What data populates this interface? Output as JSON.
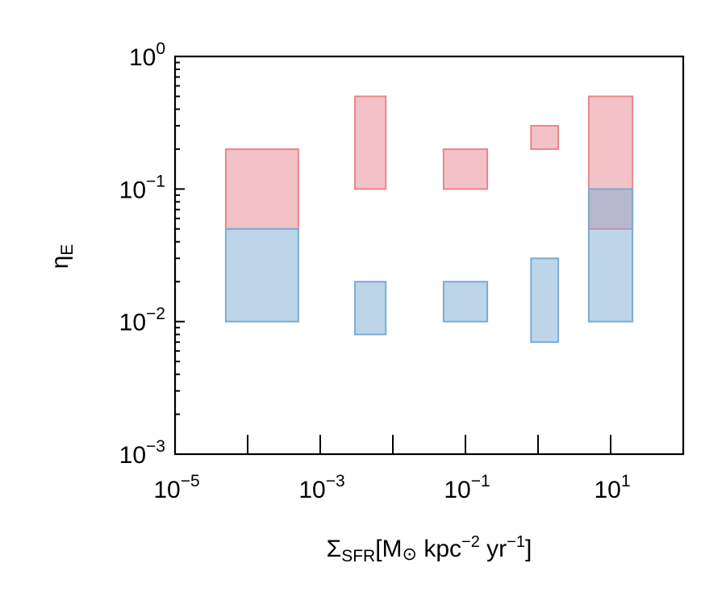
{
  "chart_data": {
    "type": "box",
    "xscale": "log",
    "yscale": "log",
    "xlim": [
      1e-05,
      100
    ],
    "ylim": [
      0.001,
      1
    ],
    "xticks": [
      {
        "base": "10",
        "exp": "−5"
      },
      {
        "base": "10",
        "exp": "−3"
      },
      {
        "base": "10",
        "exp": "−1"
      },
      {
        "base": "10",
        "exp": "1"
      }
    ],
    "yticks": [
      {
        "base": "10",
        "exp": "0"
      },
      {
        "base": "10",
        "exp": "−1"
      },
      {
        "base": "10",
        "exp": "−2"
      },
      {
        "base": "10",
        "exp": "−3"
      }
    ],
    "xlabel": {
      "main": "Σ",
      "sub": "SFR",
      "bracket_open": "[M",
      "sun": "⊙",
      "kpc": " kpc",
      "kpc_exp": "−2",
      "yr": " yr",
      "yr_exp": "−1",
      "bracket_close": "]"
    },
    "ylabel": {
      "main": "η",
      "sub": "E"
    },
    "grid": false,
    "colors": {
      "red": "#e8868d",
      "blue": "#7bacd3"
    },
    "series": [
      {
        "color_key": "red",
        "boxes": [
          {
            "x0": 5e-05,
            "x1": 0.0005,
            "y0": 0.05,
            "y1": 0.2
          },
          {
            "x0": 0.003,
            "x1": 0.008,
            "y0": 0.1,
            "y1": 0.5
          },
          {
            "x0": 0.05,
            "x1": 0.2,
            "y0": 0.1,
            "y1": 0.2
          },
          {
            "x0": 0.8,
            "x1": 1.9,
            "y0": 0.2,
            "y1": 0.3
          },
          {
            "x0": 5,
            "x1": 20,
            "y0": 0.05,
            "y1": 0.5
          }
        ]
      },
      {
        "color_key": "blue",
        "boxes": [
          {
            "x0": 5e-05,
            "x1": 0.0005,
            "y0": 0.01,
            "y1": 0.05
          },
          {
            "x0": 0.003,
            "x1": 0.008,
            "y0": 0.008,
            "y1": 0.02
          },
          {
            "x0": 0.05,
            "x1": 0.2,
            "y0": 0.01,
            "y1": 0.02
          },
          {
            "x0": 0.8,
            "x1": 1.9,
            "y0": 0.007,
            "y1": 0.03
          },
          {
            "x0": 5,
            "x1": 20,
            "y0": 0.01,
            "y1": 0.1
          }
        ]
      }
    ]
  }
}
